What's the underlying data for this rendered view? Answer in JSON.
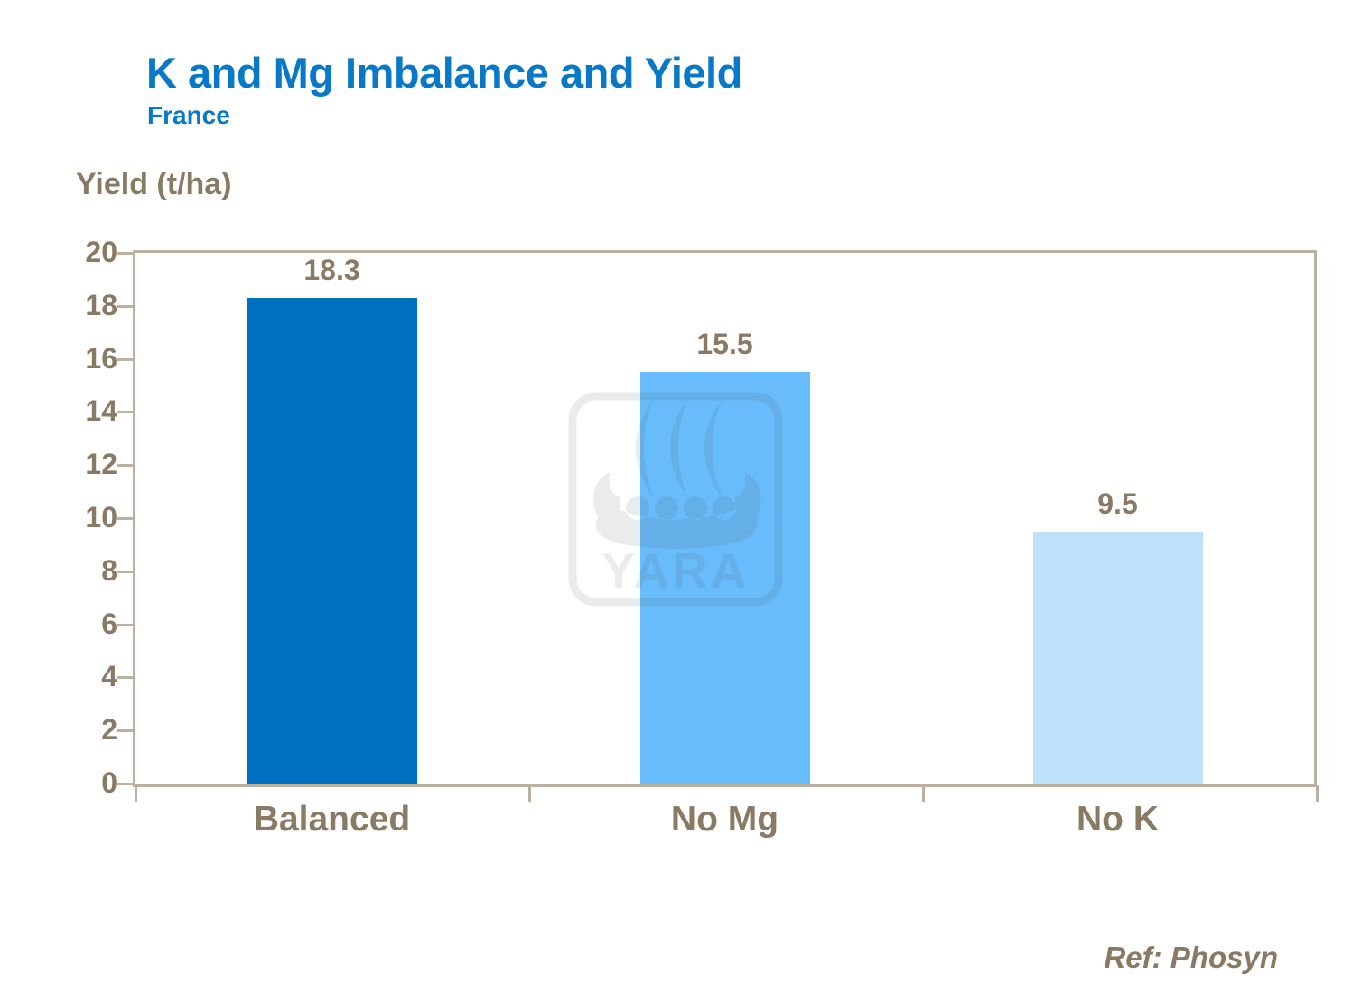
{
  "chart_data": {
    "type": "bar",
    "title": "K and Mg Imbalance and Yield",
    "subtitle": "France",
    "ylabel": "Yield (t/ha)",
    "xlabel": "",
    "categories": [
      "Balanced",
      "No Mg",
      "No K"
    ],
    "values": [
      18.3,
      15.5,
      9.5
    ],
    "data_labels": [
      "18.3",
      "15.5",
      "9.5"
    ],
    "ylim": [
      0,
      20
    ],
    "ytick_step": 2,
    "yticks": [
      "20",
      "18",
      "16",
      "14",
      "12",
      "10",
      "8",
      "6",
      "4",
      "2",
      "0"
    ],
    "grid": false,
    "legend": "none",
    "bar_colors": [
      "#0070C0",
      "#69BCFC",
      "#BEE0FB"
    ]
  },
  "watermark": {
    "brand": "YARA",
    "icon": "yara-viking-ship-logo"
  },
  "footer": {
    "reference": "Ref: Phosyn"
  },
  "colors": {
    "title_blue": "#0878C8",
    "text_brown": "#8A7963",
    "axis_line": "#BDB0A0"
  }
}
